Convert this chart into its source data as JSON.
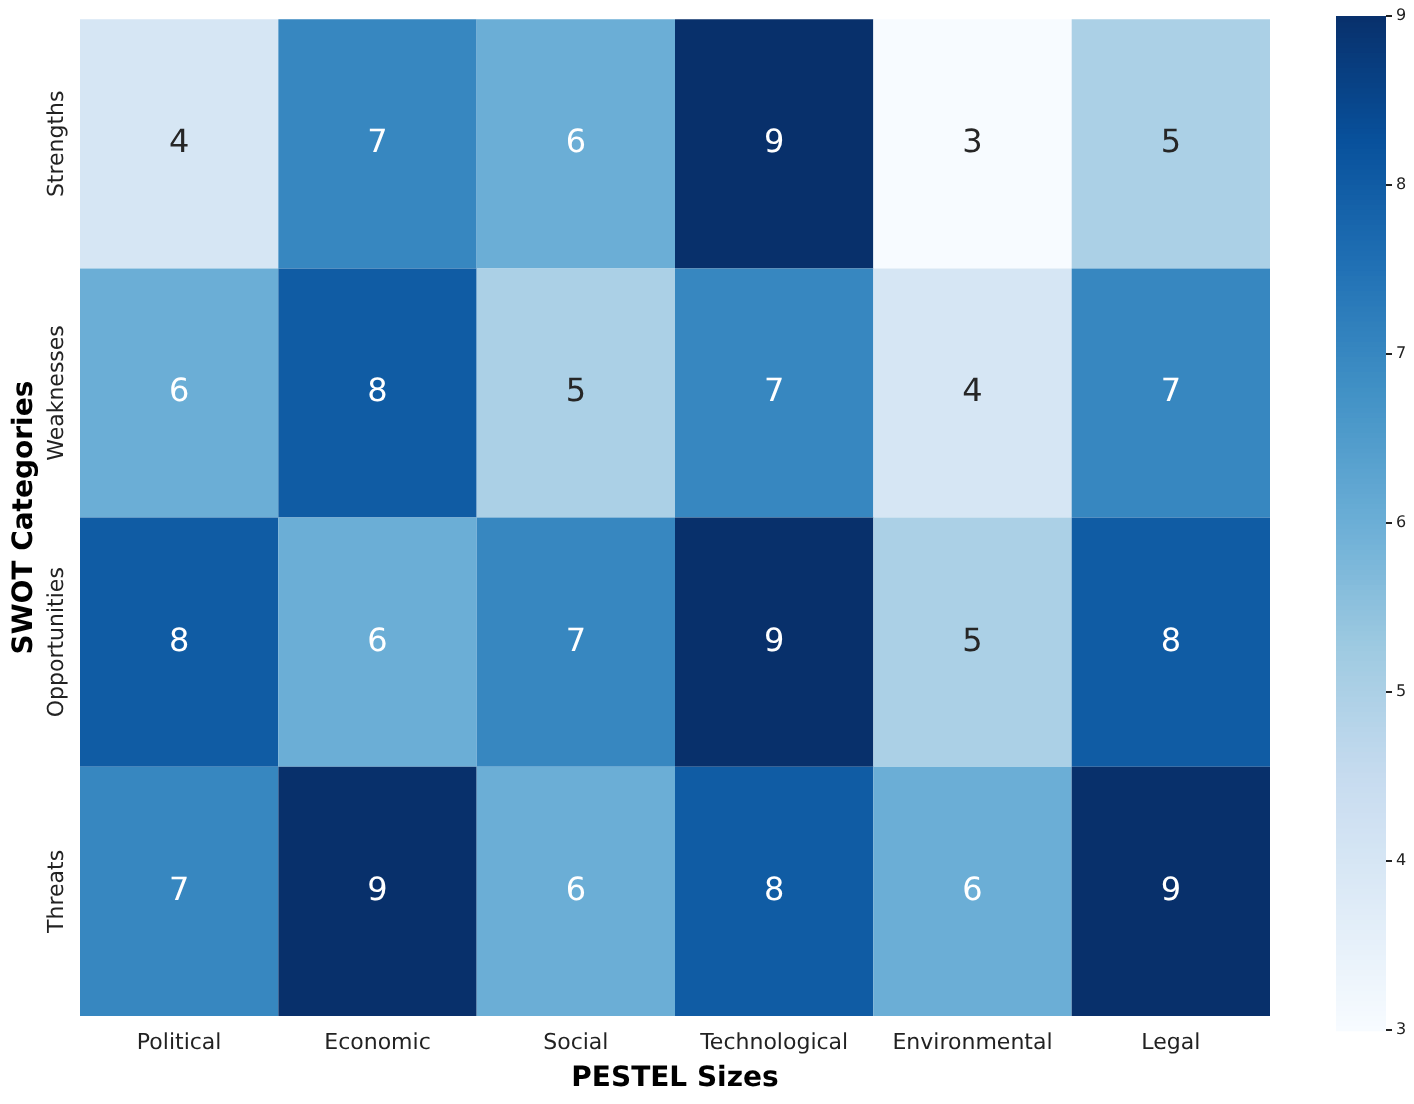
{
  "chart_data": {
    "type": "heatmap",
    "xlabel": "PESTEL Sizes",
    "ylabel": "SWOT Categories",
    "categories": [
      "Political",
      "Economic",
      "Social",
      "Technological",
      "Environmental",
      "Legal"
    ],
    "y_categories": [
      "Strengths",
      "Weaknesses",
      "Opportunities",
      "Threats"
    ],
    "cells": [
      [
        4,
        7,
        6,
        9,
        3,
        5
      ],
      [
        6,
        8,
        5,
        7,
        4,
        7
      ],
      [
        8,
        6,
        7,
        9,
        5,
        8
      ],
      [
        7,
        9,
        6,
        8,
        6,
        9
      ]
    ],
    "data_labels": true,
    "clim": [
      3,
      9
    ],
    "cticks": [
      3,
      4,
      5,
      6,
      7,
      8,
      9
    ]
  }
}
